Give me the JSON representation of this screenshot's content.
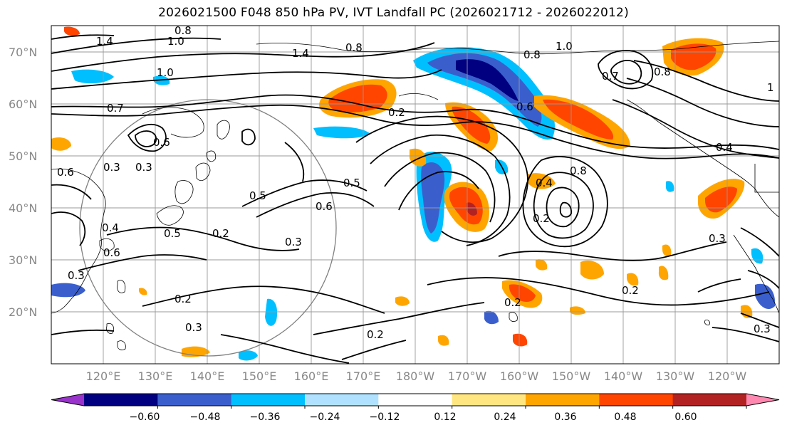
{
  "title": "2026021500 F048 850 hPa PV, IVT Landfall PC (2026021712 - 2026022012)",
  "lat_labels": [
    "70°N",
    "60°N",
    "50°N",
    "40°N",
    "30°N",
    "20°N"
  ],
  "lat_values": [
    70,
    60,
    50,
    40,
    30,
    20
  ],
  "lon_labels": [
    "120°E",
    "130°E",
    "140°E",
    "150°E",
    "160°E",
    "170°E",
    "180°W",
    "170°W",
    "160°W",
    "150°W",
    "140°W",
    "130°W",
    "120°W"
  ],
  "colorbar": {
    "tick_labels": [
      "−0.60",
      "−0.48",
      "−0.36",
      "−0.24",
      "−0.12",
      "0.12",
      "0.24",
      "0.36",
      "0.48",
      "0.60"
    ],
    "colors": [
      "#9933cc",
      "#000080",
      "#3a5fcd",
      "#00bfff",
      "#b0e2ff",
      "#ffffff",
      "#ffe680",
      "#ffa500",
      "#ff4500",
      "#b22222",
      "#ff88b0"
    ]
  },
  "contour_labels": [
    "1.4",
    "0.8",
    "1.0",
    "1.4",
    "0.8",
    "1.0",
    "0.7",
    "0.6",
    "0.3",
    "0.6",
    "0.3",
    "0.5",
    "0.5",
    "0.6",
    "0.3",
    "0.4",
    "0.2",
    "0.6",
    "0.5",
    "0.2",
    "0.3",
    "0.2",
    "0.2",
    "0.4",
    "0.8",
    "0.2",
    "0.8",
    "0.7",
    "0.8",
    "1.0",
    "0.4",
    "0.6",
    "1",
    "0.3",
    "0.3",
    "0.2",
    "0.2",
    "0.3"
  ],
  "legend_colors": {
    "contour": "#000000",
    "grid": "#999999",
    "coast": "#000000",
    "range_ring": "#808080"
  }
}
